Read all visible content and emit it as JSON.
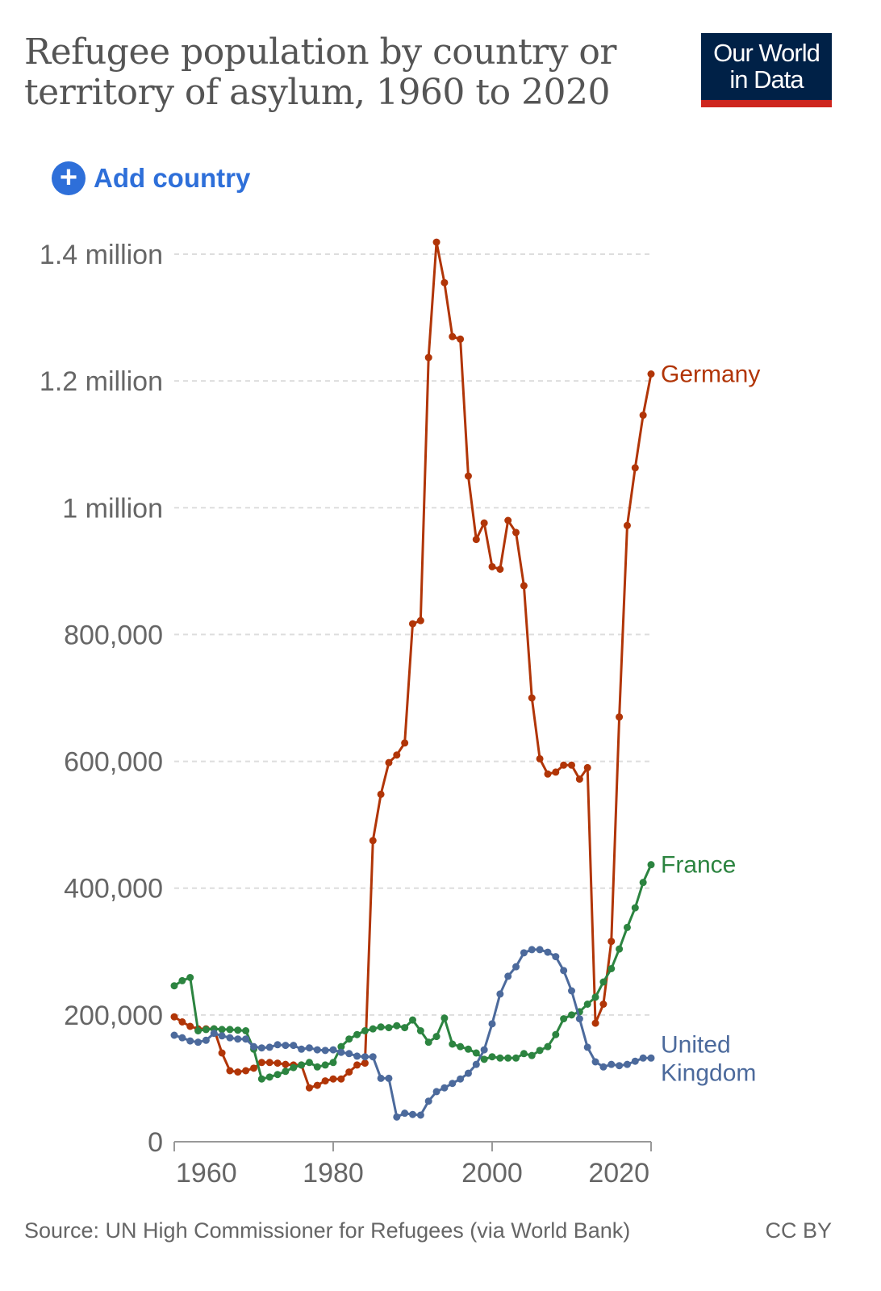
{
  "header": {
    "title": "Refugee population by country or territory of asylum, 1960 to 2020",
    "logo_line1": "Our World",
    "logo_line2": "in Data"
  },
  "controls": {
    "add_country_label": "Add country",
    "add_icon": "plus-circle-icon"
  },
  "footer": {
    "source": "Source: UN High Commissioner for Refugees (via World Bank)",
    "license": "CC BY"
  },
  "chart_data": {
    "type": "line",
    "title": "Refugee population by country or territory of asylum, 1960 to 2020",
    "xlabel": "",
    "ylabel": "",
    "xlim": [
      1960,
      2020
    ],
    "ylim": [
      0,
      1400000
    ],
    "grid": true,
    "legend": "inline-right",
    "x_ticks": [
      {
        "value": 1960,
        "label": "1960"
      },
      {
        "value": 1980,
        "label": "1980"
      },
      {
        "value": 2000,
        "label": "2000"
      },
      {
        "value": 2020,
        "label": "2020"
      }
    ],
    "y_ticks": [
      {
        "value": 0,
        "label": "0"
      },
      {
        "value": 200000,
        "label": "200,000"
      },
      {
        "value": 400000,
        "label": "400,000"
      },
      {
        "value": 600000,
        "label": "600,000"
      },
      {
        "value": 800000,
        "label": "800,000"
      },
      {
        "value": 1000000,
        "label": "1 million"
      },
      {
        "value": 1200000,
        "label": "1.2 million"
      },
      {
        "value": 1400000,
        "label": "1.4 million"
      }
    ],
    "x_start": 1960,
    "series": [
      {
        "name": "Germany",
        "label_lines": [
          "Germany"
        ],
        "color": "#b13507",
        "values": [
          197000,
          189000,
          182000,
          178000,
          178000,
          178000,
          140000,
          112000,
          110000,
          112000,
          116000,
          125000,
          125000,
          124000,
          122000,
          121000,
          121000,
          85000,
          89000,
          96000,
          99000,
          99000,
          110000,
          121000,
          124000,
          475000,
          548000,
          598000,
          610000,
          629000,
          817000,
          822000,
          1237000,
          1419000,
          1355000,
          1270000,
          1266000,
          1050000,
          950000,
          976000,
          907000,
          903000,
          980000,
          961000,
          877000,
          700000,
          604000,
          580000,
          583000,
          594000,
          594000,
          572000,
          590000,
          187000,
          217000,
          316000,
          670000,
          972000,
          1063000,
          1146000,
          1211000
        ]
      },
      {
        "name": "France",
        "label_lines": [
          "France"
        ],
        "color": "#2c8440",
        "values": [
          246000,
          254000,
          259000,
          175000,
          177000,
          178000,
          177000,
          177000,
          176000,
          175000,
          146000,
          99000,
          102000,
          106000,
          111000,
          117000,
          121000,
          125000,
          118000,
          121000,
          125000,
          150000,
          162000,
          169000,
          175000,
          178000,
          181000,
          180000,
          183000,
          180000,
          192000,
          175000,
          157000,
          166000,
          195000,
          154000,
          150000,
          146000,
          140000,
          130000,
          134000,
          132000,
          132000,
          132000,
          139000,
          136000,
          144000,
          150000,
          169000,
          194000,
          200000,
          205000,
          217000,
          228000,
          252000,
          273000,
          304000,
          338000,
          369000,
          409000,
          437000
        ]
      },
      {
        "name": "United Kingdom",
        "label_lines": [
          "United",
          "Kingdom"
        ],
        "color": "#4c6a9c",
        "values": [
          168000,
          164000,
          159000,
          157000,
          160000,
          171000,
          167000,
          164000,
          162000,
          162000,
          150000,
          148000,
          149000,
          153000,
          152000,
          152000,
          146000,
          148000,
          145000,
          144000,
          145000,
          141000,
          139000,
          135000,
          134000,
          134000,
          100000,
          100000,
          39000,
          45000,
          43000,
          42000,
          64000,
          79000,
          85000,
          92000,
          99000,
          108000,
          122000,
          145000,
          186000,
          233000,
          261000,
          276000,
          298000,
          303000,
          303000,
          299000,
          292000,
          270000,
          238000,
          194000,
          149000,
          126000,
          118000,
          122000,
          120000,
          122000,
          127000,
          132000,
          132000
        ]
      }
    ]
  }
}
